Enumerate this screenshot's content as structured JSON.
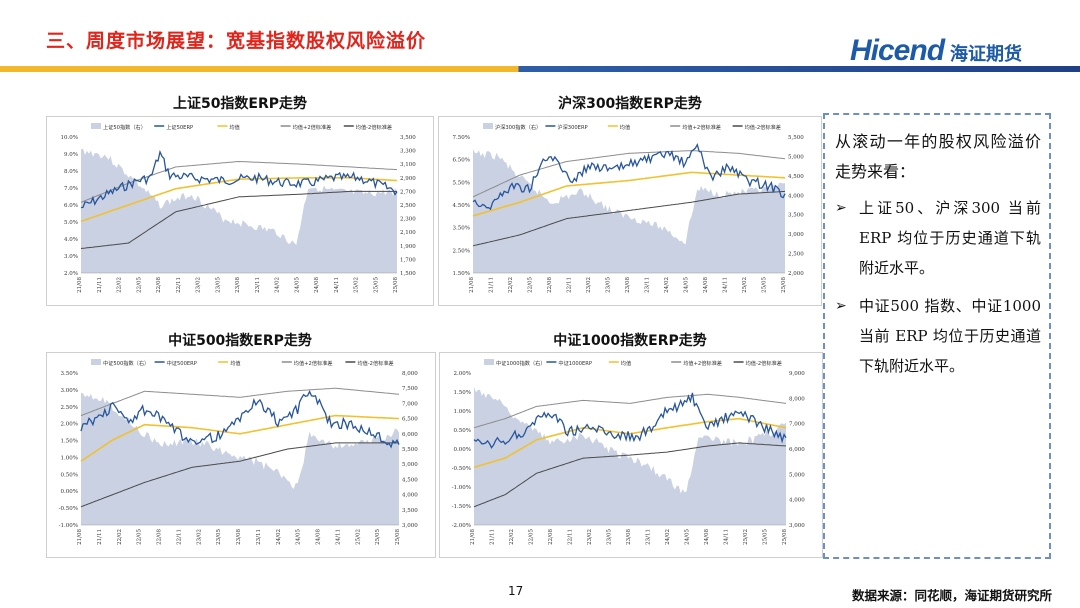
{
  "header": {
    "title": "三、周度市场展望：宽基指数股权风险溢价",
    "logo_text": "Hicend",
    "logo_cn": "海证期货"
  },
  "textbox": {
    "intro": "从滚动一年的股权风险溢价走势来看：",
    "bullets": [
      "上证50、沪深300 当前ERP 均位于历史通道下轨附近水平。",
      "中证500 指数、中证1000当前 ERP 均位于历史通道下轨附近水平。"
    ]
  },
  "footer": {
    "page": "17",
    "source": "数据来源：同花顺，海证期货研究所"
  },
  "colors": {
    "index_area": "#c9d1e3",
    "erp_line": "#27559c",
    "mean_line": "#f2c12e",
    "band_line": "#8c8c8c"
  },
  "charts": [
    {
      "id": "sz50",
      "title": "上证50指数ERP走势",
      "legend": [
        "上证50指数（右）",
        "上证50ERP",
        "均值",
        "均值+2倍标准差",
        "均值-2倍标准差"
      ],
      "left_ticks": [
        "10.0%",
        "9.0%",
        "8.0%",
        "7.0%",
        "6.0%",
        "5.0%",
        "4.0%",
        "3.0%",
        "2.0%"
      ],
      "right_ticks": [
        "3,500",
        "3,300",
        "3,100",
        "2,900",
        "2,700",
        "2,500",
        "2,300",
        "2,100",
        "1,900",
        "1,700",
        "1,500"
      ],
      "x_ticks": [
        "21/08",
        "21/11",
        "22/02",
        "22/05",
        "22/08",
        "22/11",
        "23/02",
        "23/05",
        "23/08",
        "23/11",
        "24/02",
        "24/05",
        "24/08",
        "24/11",
        "25/02",
        "25/05",
        "25/08"
      ]
    },
    {
      "id": "hs300",
      "title": "沪深300指数ERP走势",
      "legend": [
        "沪深300指数（右）",
        "沪深300ERP",
        "均值",
        "均值+2倍标准差",
        "均值-2倍标准差"
      ],
      "left_ticks": [
        "7.50%",
        "6.50%",
        "5.50%",
        "4.50%",
        "3.50%",
        "2.50%",
        "1.50%"
      ],
      "right_ticks": [
        "5,500",
        "5,000",
        "4,500",
        "4,000",
        "3,500",
        "3,000",
        "2,500",
        "2,000"
      ],
      "x_ticks": [
        "21/08",
        "21/11",
        "22/02",
        "22/05",
        "22/08",
        "22/11",
        "23/02",
        "23/05",
        "23/08",
        "23/11",
        "24/02",
        "24/05",
        "24/08",
        "24/11",
        "25/02",
        "25/05",
        "25/08"
      ]
    },
    {
      "id": "zz500",
      "title": "中证500指数ERP走势",
      "legend": [
        "中证500指数（右）",
        "中证500ERP",
        "均值",
        "均值+2倍标准差",
        "均值-2倍标准差"
      ],
      "left_ticks": [
        "3.50%",
        "3.00%",
        "2.50%",
        "2.00%",
        "1.50%",
        "1.00%",
        "0.50%",
        "0.00%",
        "-0.50%",
        "-1.00%"
      ],
      "right_ticks": [
        "8,000",
        "7,500",
        "7,000",
        "6,500",
        "6,000",
        "5,500",
        "5,000",
        "4,500",
        "4,000",
        "3,500",
        "3,000"
      ],
      "x_ticks": [
        "21/08",
        "21/11",
        "22/02",
        "22/05",
        "22/08",
        "22/11",
        "23/02",
        "23/05",
        "23/08",
        "23/11",
        "24/02",
        "24/05",
        "24/08",
        "24/11",
        "25/02",
        "25/05",
        "25/08"
      ]
    },
    {
      "id": "zz1000",
      "title": "中证1000指数ERP走势",
      "legend": [
        "中证1000指数（右）",
        "中证1000ERP",
        "均值",
        "均值+2倍标准差",
        "均值-2倍标准差"
      ],
      "left_ticks": [
        "2.00%",
        "1.50%",
        "1.00%",
        "0.50%",
        "0.00%",
        "-0.50%",
        "-1.00%",
        "-1.50%",
        "-2.00%"
      ],
      "right_ticks": [
        "9,000",
        "8,000",
        "7,000",
        "6,000",
        "5,000",
        "4,000",
        "3,000"
      ],
      "x_ticks": [
        "21/08",
        "21/11",
        "22/02",
        "22/05",
        "22/08",
        "22/11",
        "23/02",
        "23/05",
        "23/08",
        "23/11",
        "24/02",
        "24/05",
        "24/08",
        "24/11",
        "25/02",
        "25/05",
        "25/08"
      ]
    }
  ]
}
